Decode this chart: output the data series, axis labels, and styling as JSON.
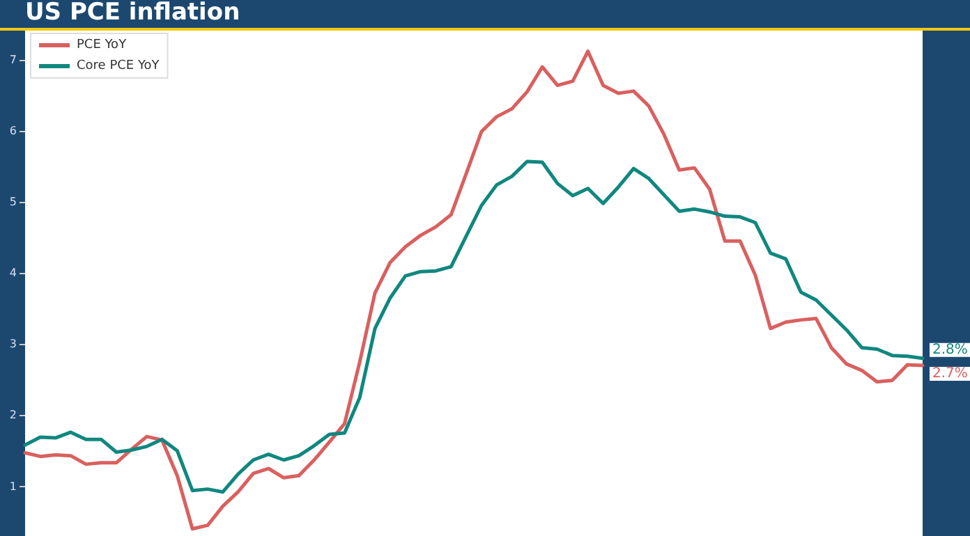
{
  "chart_data": {
    "type": "line",
    "title": "US PCE inflation",
    "categories": [
      null,
      null,
      null,
      null,
      null,
      null,
      null,
      null,
      null,
      null,
      null,
      null,
      null,
      null,
      null,
      null,
      null,
      null,
      null,
      null,
      null,
      null,
      null,
      null,
      null,
      null,
      null,
      null,
      null,
      null,
      null,
      null,
      null,
      null,
      null,
      null,
      null,
      null,
      null,
      null,
      null,
      null,
      null,
      null,
      null,
      null,
      null,
      null,
      null,
      null,
      null,
      null,
      null,
      null,
      null,
      null,
      null,
      null,
      null,
      null
    ],
    "series": [
      {
        "name": "PCE YoY",
        "color": "#d9605f",
        "values": [
          1.47,
          1.42,
          1.44,
          1.43,
          1.31,
          1.33,
          1.33,
          1.52,
          1.7,
          1.65,
          1.15,
          0.4,
          0.45,
          0.72,
          0.92,
          1.18,
          1.25,
          1.12,
          1.15,
          1.37,
          1.62,
          1.88,
          2.75,
          3.72,
          4.15,
          4.37,
          4.53,
          4.65,
          4.82,
          5.4,
          5.99,
          6.2,
          6.31,
          6.55,
          6.9,
          6.64,
          6.7,
          7.12,
          6.64,
          6.53,
          6.56,
          6.35,
          5.95,
          5.45,
          5.48,
          5.18,
          4.45,
          4.45,
          3.97,
          3.22,
          3.31,
          3.34,
          3.36,
          2.95,
          2.72,
          2.63,
          2.47,
          2.49,
          2.71,
          2.7
        ],
        "value_labels": [
          null,
          null,
          null,
          null,
          null,
          null,
          null,
          null,
          null,
          null,
          null,
          null,
          null,
          null,
          null,
          null,
          null,
          null,
          null,
          null,
          null,
          null,
          null,
          null,
          null,
          null,
          null,
          null,
          null,
          null,
          null,
          null,
          null,
          null,
          null,
          null,
          null,
          null,
          null,
          null,
          null,
          null,
          null,
          null,
          null,
          null,
          null,
          null,
          null,
          null,
          null,
          null,
          null,
          null,
          null,
          null,
          null,
          null,
          null,
          "2.7%"
        ]
      },
      {
        "name": "Core PCE YoY",
        "color": "#10877f",
        "values": [
          1.58,
          1.69,
          1.68,
          1.76,
          1.66,
          1.66,
          1.48,
          1.51,
          1.56,
          1.66,
          1.5,
          0.94,
          0.96,
          0.92,
          1.17,
          1.37,
          1.45,
          1.37,
          1.43,
          1.57,
          1.73,
          1.75,
          2.25,
          3.22,
          3.65,
          3.96,
          4.02,
          4.03,
          4.09,
          4.52,
          4.95,
          5.24,
          5.36,
          5.57,
          5.56,
          5.26,
          5.09,
          5.19,
          4.98,
          5.21,
          5.47,
          5.33,
          5.1,
          4.87,
          4.9,
          4.86,
          4.8,
          4.79,
          4.71,
          4.28,
          4.2,
          3.73,
          3.62,
          3.41,
          3.2,
          2.95,
          2.93,
          2.84,
          2.83,
          2.8
        ],
        "value_labels": [
          null,
          null,
          null,
          null,
          null,
          null,
          null,
          null,
          null,
          null,
          null,
          null,
          null,
          null,
          null,
          null,
          null,
          null,
          null,
          null,
          null,
          null,
          null,
          null,
          null,
          null,
          null,
          null,
          null,
          null,
          null,
          null,
          null,
          null,
          null,
          null,
          null,
          null,
          null,
          null,
          null,
          null,
          null,
          null,
          null,
          null,
          null,
          null,
          null,
          null,
          null,
          null,
          null,
          null,
          null,
          null,
          null,
          null,
          null,
          "2.8%"
        ]
      }
    ],
    "ylim": [
      0.3,
      7.45
    ],
    "yticks": [
      1,
      2,
      3,
      4,
      5,
      6,
      7
    ],
    "tick_labels": "y",
    "legend": "top left",
    "marker": "none",
    "line_style": "solid"
  }
}
